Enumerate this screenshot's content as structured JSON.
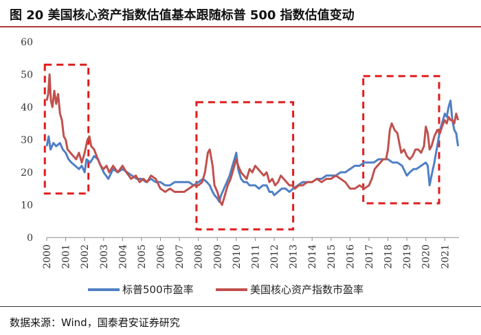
{
  "header": {
    "title": "图 20 美国核心资产指数估值基本跟随标普 500 指数估值变动"
  },
  "footer": {
    "source": "数据来源：Wind，国泰君安证券研究"
  },
  "colors": {
    "sp500": "#4f7fc4",
    "core_assets": "#c0504d",
    "highlight_box": "#e01b1b",
    "title_rule": "#b0373a"
  },
  "chart_data": {
    "type": "line",
    "title": "",
    "xlabel": "",
    "ylabel": "",
    "ylim": [
      0,
      60
    ],
    "yticks": [
      0,
      10,
      20,
      30,
      40,
      50,
      60
    ],
    "xlim": [
      2000,
      2021.75
    ],
    "xticks": [
      2000,
      2001,
      2002,
      2003,
      2004,
      2005,
      2006,
      2007,
      2008,
      2009,
      2010,
      2011,
      2012,
      2013,
      2014,
      2015,
      2016,
      2017,
      2018,
      2019,
      2020,
      2021
    ],
    "grid": false,
    "legend": "bottom",
    "highlight_ranges": [
      {
        "x": [
          1999.9,
          2002.2
        ],
        "y": [
          13.5,
          53
        ]
      },
      {
        "x": [
          2007.9,
          2013.0
        ],
        "y": [
          2.5,
          41.5
        ]
      },
      {
        "x": [
          2016.7,
          2020.7
        ],
        "y": [
          10.5,
          49.5
        ]
      }
    ],
    "series": [
      {
        "name": "标普500市盈率",
        "color": "#4f7fc4",
        "points": [
          [
            2000.0,
            28
          ],
          [
            2000.1,
            31
          ],
          [
            2000.2,
            27
          ],
          [
            2000.35,
            29
          ],
          [
            2000.5,
            28
          ],
          [
            2000.7,
            29
          ],
          [
            2000.85,
            27
          ],
          [
            2001.0,
            26
          ],
          [
            2001.15,
            24
          ],
          [
            2001.3,
            23
          ],
          [
            2001.5,
            22
          ],
          [
            2001.7,
            21
          ],
          [
            2001.85,
            22
          ],
          [
            2002.0,
            20
          ],
          [
            2002.1,
            24
          ],
          [
            2002.3,
            23
          ],
          [
            2002.5,
            25
          ],
          [
            2002.7,
            24
          ],
          [
            2002.85,
            22
          ],
          [
            2003.0,
            20
          ],
          [
            2003.25,
            18
          ],
          [
            2003.5,
            21
          ],
          [
            2003.75,
            20
          ],
          [
            2004.0,
            21
          ],
          [
            2004.25,
            20
          ],
          [
            2004.5,
            19
          ],
          [
            2004.75,
            18
          ],
          [
            2005.0,
            18
          ],
          [
            2005.25,
            17
          ],
          [
            2005.5,
            18
          ],
          [
            2005.75,
            17
          ],
          [
            2006.0,
            17
          ],
          [
            2006.25,
            16
          ],
          [
            2006.5,
            16
          ],
          [
            2006.75,
            17
          ],
          [
            2007.0,
            17
          ],
          [
            2007.25,
            17
          ],
          [
            2007.5,
            17
          ],
          [
            2007.75,
            16
          ],
          [
            2008.0,
            17
          ],
          [
            2008.25,
            18
          ],
          [
            2008.45,
            17
          ],
          [
            2008.6,
            16
          ],
          [
            2008.75,
            14
          ],
          [
            2008.85,
            13
          ],
          [
            2009.0,
            12
          ],
          [
            2009.1,
            11
          ],
          [
            2009.2,
            13
          ],
          [
            2009.35,
            15
          ],
          [
            2009.5,
            17
          ],
          [
            2009.65,
            19
          ],
          [
            2009.8,
            22
          ],
          [
            2009.9,
            24
          ],
          [
            2010.0,
            26
          ],
          [
            2010.1,
            21
          ],
          [
            2010.25,
            18
          ],
          [
            2010.4,
            17
          ],
          [
            2010.55,
            17
          ],
          [
            2010.7,
            16
          ],
          [
            2010.85,
            16
          ],
          [
            2011.0,
            16
          ],
          [
            2011.2,
            15
          ],
          [
            2011.4,
            16
          ],
          [
            2011.6,
            16
          ],
          [
            2011.75,
            14
          ],
          [
            2011.9,
            14
          ],
          [
            2012.0,
            13
          ],
          [
            2012.2,
            14
          ],
          [
            2012.4,
            15
          ],
          [
            2012.6,
            15
          ],
          [
            2012.8,
            14
          ],
          [
            2013.0,
            15
          ],
          [
            2013.25,
            16
          ],
          [
            2013.5,
            17
          ],
          [
            2013.75,
            17
          ],
          [
            2014.0,
            17
          ],
          [
            2014.25,
            18
          ],
          [
            2014.5,
            18
          ],
          [
            2014.75,
            19
          ],
          [
            2015.0,
            19
          ],
          [
            2015.25,
            19
          ],
          [
            2015.5,
            20
          ],
          [
            2015.75,
            20
          ],
          [
            2016.0,
            21
          ],
          [
            2016.25,
            22
          ],
          [
            2016.5,
            22
          ],
          [
            2016.75,
            23
          ],
          [
            2017.0,
            23
          ],
          [
            2017.25,
            23
          ],
          [
            2017.5,
            24
          ],
          [
            2017.75,
            24
          ],
          [
            2018.0,
            24
          ],
          [
            2018.25,
            23
          ],
          [
            2018.5,
            23
          ],
          [
            2018.75,
            22
          ],
          [
            2019.0,
            19
          ],
          [
            2019.15,
            20
          ],
          [
            2019.35,
            21
          ],
          [
            2019.5,
            21
          ],
          [
            2019.75,
            22
          ],
          [
            2020.0,
            23
          ],
          [
            2020.1,
            22
          ],
          [
            2020.2,
            16
          ],
          [
            2020.3,
            19
          ],
          [
            2020.45,
            23
          ],
          [
            2020.6,
            28
          ],
          [
            2020.75,
            33
          ],
          [
            2020.9,
            36
          ],
          [
            2021.0,
            38
          ],
          [
            2021.1,
            37
          ],
          [
            2021.2,
            40
          ],
          [
            2021.3,
            42
          ],
          [
            2021.4,
            36
          ],
          [
            2021.5,
            33
          ],
          [
            2021.6,
            32
          ],
          [
            2021.7,
            28
          ]
        ]
      },
      {
        "name": "美国核心资产指数市盈率",
        "color": "#c0504d",
        "points": [
          [
            2000.0,
            42
          ],
          [
            2000.08,
            44
          ],
          [
            2000.15,
            50
          ],
          [
            2000.22,
            42
          ],
          [
            2000.3,
            40
          ],
          [
            2000.4,
            45
          ],
          [
            2000.5,
            41
          ],
          [
            2000.6,
            44
          ],
          [
            2000.7,
            38
          ],
          [
            2000.8,
            36
          ],
          [
            2000.9,
            31
          ],
          [
            2001.0,
            30
          ],
          [
            2001.1,
            27
          ],
          [
            2001.25,
            26
          ],
          [
            2001.4,
            25
          ],
          [
            2001.55,
            24
          ],
          [
            2001.7,
            26
          ],
          [
            2001.85,
            23
          ],
          [
            2002.0,
            26
          ],
          [
            2002.15,
            30
          ],
          [
            2002.25,
            31
          ],
          [
            2002.35,
            28
          ],
          [
            2002.5,
            27
          ],
          [
            2002.7,
            24
          ],
          [
            2002.85,
            22
          ],
          [
            2003.0,
            21
          ],
          [
            2003.15,
            22
          ],
          [
            2003.3,
            20
          ],
          [
            2003.5,
            22
          ],
          [
            2003.75,
            20
          ],
          [
            2004.0,
            22
          ],
          [
            2004.2,
            20
          ],
          [
            2004.45,
            18
          ],
          [
            2004.7,
            19
          ],
          [
            2004.9,
            17
          ],
          [
            2005.1,
            18
          ],
          [
            2005.3,
            17
          ],
          [
            2005.5,
            19
          ],
          [
            2005.75,
            18
          ],
          [
            2006.0,
            15
          ],
          [
            2006.25,
            14
          ],
          [
            2006.5,
            15
          ],
          [
            2006.75,
            14
          ],
          [
            2007.0,
            14
          ],
          [
            2007.25,
            14
          ],
          [
            2007.5,
            15
          ],
          [
            2007.75,
            16
          ],
          [
            2008.0,
            16
          ],
          [
            2008.2,
            17
          ],
          [
            2008.35,
            20
          ],
          [
            2008.5,
            26
          ],
          [
            2008.6,
            27
          ],
          [
            2008.75,
            22
          ],
          [
            2008.85,
            16
          ],
          [
            2009.0,
            14
          ],
          [
            2009.15,
            11
          ],
          [
            2009.25,
            10
          ],
          [
            2009.4,
            13
          ],
          [
            2009.55,
            16
          ],
          [
            2009.7,
            18
          ],
          [
            2009.85,
            21
          ],
          [
            2010.0,
            24
          ],
          [
            2010.1,
            22
          ],
          [
            2010.25,
            20
          ],
          [
            2010.4,
            19
          ],
          [
            2010.55,
            18
          ],
          [
            2010.7,
            21
          ],
          [
            2010.85,
            20
          ],
          [
            2011.0,
            22
          ],
          [
            2011.15,
            21
          ],
          [
            2011.3,
            20
          ],
          [
            2011.45,
            19
          ],
          [
            2011.6,
            20
          ],
          [
            2011.75,
            17
          ],
          [
            2011.9,
            18
          ],
          [
            2012.05,
            16
          ],
          [
            2012.2,
            17
          ],
          [
            2012.35,
            19
          ],
          [
            2012.5,
            18
          ],
          [
            2012.65,
            17
          ],
          [
            2012.8,
            16
          ],
          [
            2012.95,
            16
          ],
          [
            2013.1,
            15
          ],
          [
            2013.3,
            16
          ],
          [
            2013.5,
            16
          ],
          [
            2013.75,
            17
          ],
          [
            2014.0,
            17
          ],
          [
            2014.25,
            18
          ],
          [
            2014.5,
            17
          ],
          [
            2014.75,
            18
          ],
          [
            2015.0,
            18
          ],
          [
            2015.25,
            19
          ],
          [
            2015.5,
            18
          ],
          [
            2015.75,
            17
          ],
          [
            2016.0,
            15
          ],
          [
            2016.25,
            15
          ],
          [
            2016.5,
            16
          ],
          [
            2016.75,
            15
          ],
          [
            2017.0,
            16
          ],
          [
            2017.15,
            18
          ],
          [
            2017.3,
            21
          ],
          [
            2017.45,
            22
          ],
          [
            2017.6,
            23
          ],
          [
            2017.75,
            24
          ],
          [
            2017.9,
            24
          ],
          [
            2018.0,
            27
          ],
          [
            2018.1,
            33
          ],
          [
            2018.2,
            35
          ],
          [
            2018.35,
            33
          ],
          [
            2018.5,
            32
          ],
          [
            2018.6,
            29
          ],
          [
            2018.7,
            26
          ],
          [
            2018.85,
            27
          ],
          [
            2019.0,
            25
          ],
          [
            2019.15,
            24
          ],
          [
            2019.3,
            25
          ],
          [
            2019.45,
            27
          ],
          [
            2019.6,
            27
          ],
          [
            2019.75,
            26
          ],
          [
            2019.9,
            28
          ],
          [
            2020.0,
            34
          ],
          [
            2020.1,
            32
          ],
          [
            2020.2,
            27
          ],
          [
            2020.3,
            28
          ],
          [
            2020.45,
            31
          ],
          [
            2020.6,
            33
          ],
          [
            2020.75,
            32
          ],
          [
            2020.85,
            34
          ],
          [
            2021.0,
            36
          ],
          [
            2021.1,
            35
          ],
          [
            2021.2,
            37
          ],
          [
            2021.3,
            36
          ],
          [
            2021.4,
            36
          ],
          [
            2021.5,
            35
          ],
          [
            2021.6,
            38
          ],
          [
            2021.7,
            36
          ]
        ]
      }
    ]
  }
}
